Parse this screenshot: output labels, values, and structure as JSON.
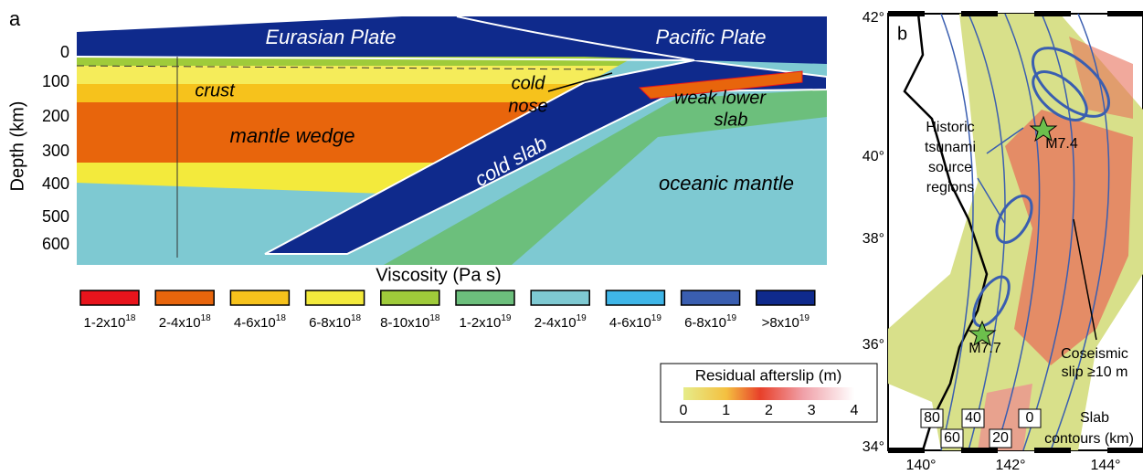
{
  "panel_a": {
    "label": "a",
    "plates": [
      "Eurasian Plate",
      "Pacific Plate"
    ],
    "y_axis": {
      "title": "Depth (km)",
      "ticks": [
        "0",
        "100",
        "200",
        "300",
        "400",
        "500",
        "600"
      ]
    },
    "regions": {
      "crust": "crust",
      "cold_nose": [
        "cold",
        "nose"
      ],
      "mantle_wedge": "mantle wedge",
      "cold_slab": "cold slab",
      "weak_lower_slab": [
        "weak lower",
        "slab"
      ],
      "oceanic_mantle": "oceanic mantle"
    },
    "legend_title": "Viscosity (Pa s)",
    "legend": [
      {
        "base": "1-2x10",
        "exp": "18",
        "color": "#e8141c"
      },
      {
        "base": "2-4x10",
        "exp": "18",
        "color": "#e8650c"
      },
      {
        "base": "4-6x10",
        "exp": "18",
        "color": "#f6c21c"
      },
      {
        "base": "6-8x10",
        "exp": "18",
        "color": "#f3ea3c"
      },
      {
        "base": "8-10x10",
        "exp": "18",
        "color": "#9fcb3a"
      },
      {
        "base": "1-2x10",
        "exp": "19",
        "color": "#6cbf7c"
      },
      {
        "base": "2-4x10",
        "exp": "19",
        "color": "#7ec9d2"
      },
      {
        "base": "4-6x10",
        "exp": "19",
        "color": "#3fb6e8"
      },
      {
        "base": "6-8x10",
        "exp": "19",
        "color": "#3a5eb0"
      },
      {
        "base": ">8x10",
        "exp": "19",
        "color": "#0f2a8c"
      }
    ]
  },
  "panel_b": {
    "label": "b",
    "tsunami": [
      "Historic",
      "tsunami",
      "source",
      "regions"
    ],
    "events": [
      "M7.4",
      "M7.7"
    ],
    "coseismic": [
      "Coseismic",
      "slip ≥10 m"
    ],
    "colorbar_title": "Residual afterslip (m)",
    "colorbar_ticks": [
      "0",
      "1",
      "2",
      "3",
      "4"
    ],
    "slab_contours": [
      "Slab",
      "contours (km)"
    ],
    "contour_labels": [
      "80",
      "60",
      "40",
      "20",
      "0"
    ],
    "lat_ticks": [
      "42°",
      "40°",
      "38°",
      "36°",
      "34°"
    ],
    "lon_ticks": [
      "140°",
      "142°",
      "144°"
    ]
  }
}
